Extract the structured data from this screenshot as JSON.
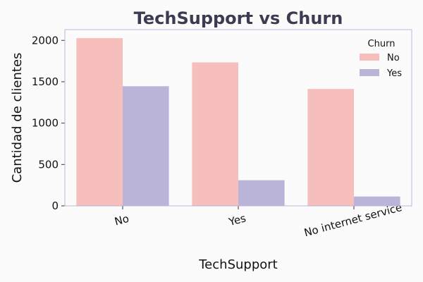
{
  "chart_data": {
    "type": "bar",
    "title": "TechSupport vs Churn",
    "xlabel": "TechSupport",
    "ylabel": "Cantidad de clientes",
    "categories": [
      "No",
      "Yes",
      "No internet service"
    ],
    "series": [
      {
        "name": "No",
        "values": [
          2027,
          1734,
          1413
        ]
      },
      {
        "name": "Yes",
        "values": [
          1446,
          310,
          113
        ]
      }
    ],
    "ylim": [
      0,
      2130
    ],
    "yticks": [
      0,
      500,
      1000,
      1500,
      2000
    ],
    "legend": {
      "title": "Churn",
      "position": "top-right"
    },
    "grid": false
  },
  "colors": {
    "series_no": "#f6bfbc",
    "series_yes": "#bab4d8",
    "title": "#3b3b52",
    "frame": "#b8b4d8",
    "text": "#111111",
    "background": "#fbfbfc"
  }
}
